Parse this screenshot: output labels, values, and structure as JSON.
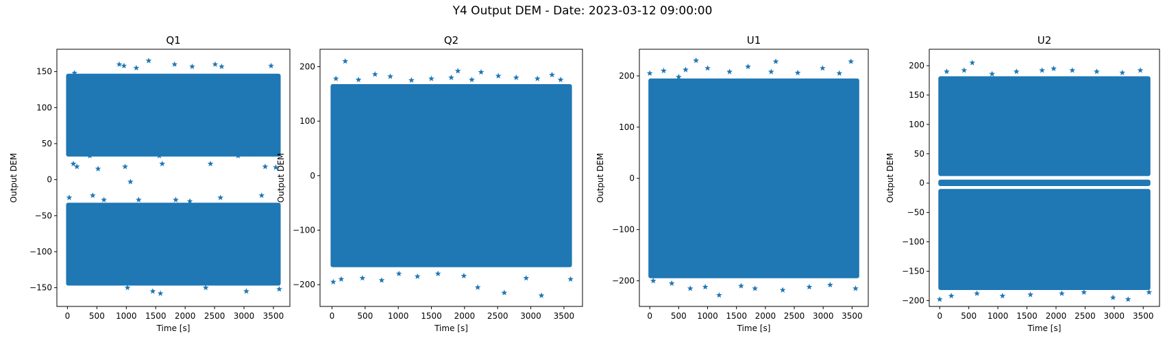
{
  "figure": {
    "title": "Y4 Output DEM - Date: 2023-03-12 09:00:00"
  },
  "colors": {
    "marker": "#1f77b4",
    "axes": "#000000",
    "background": "#ffffff"
  },
  "chart_data": [
    {
      "type": "scatter",
      "marker": "star",
      "title": "Q1",
      "xlabel": "Time [s]",
      "ylabel": "Output DEM",
      "xlim": [
        -180,
        3780
      ],
      "ylim": [
        -176,
        181
      ],
      "xticks": [
        0,
        500,
        1000,
        1500,
        2000,
        2500,
        3000,
        3500
      ],
      "yticks": [
        -150,
        -100,
        -50,
        0,
        50,
        100,
        150
      ],
      "grid": false,
      "x_range": [
        0,
        3600
      ],
      "bands": [
        [
          32,
          147
        ],
        [
          -147,
          -32
        ]
      ],
      "outliers": [
        [
          30,
          -25
        ],
        [
          100,
          22
        ],
        [
          120,
          148
        ],
        [
          160,
          18
        ],
        [
          330,
          35
        ],
        [
          380,
          33
        ],
        [
          430,
          -22
        ],
        [
          520,
          15
        ],
        [
          620,
          -28
        ],
        [
          750,
          36
        ],
        [
          880,
          160
        ],
        [
          960,
          158
        ],
        [
          980,
          18
        ],
        [
          1020,
          -150
        ],
        [
          1070,
          -3
        ],
        [
          1130,
          38
        ],
        [
          1170,
          155
        ],
        [
          1210,
          -28
        ],
        [
          1380,
          165
        ],
        [
          1450,
          -155
        ],
        [
          1560,
          33
        ],
        [
          1580,
          -158
        ],
        [
          1610,
          22
        ],
        [
          1820,
          160
        ],
        [
          1840,
          -28
        ],
        [
          1900,
          38
        ],
        [
          2080,
          -30
        ],
        [
          2120,
          157
        ],
        [
          2350,
          -150
        ],
        [
          2430,
          22
        ],
        [
          2510,
          160
        ],
        [
          2600,
          -25
        ],
        [
          2620,
          157
        ],
        [
          2900,
          33
        ],
        [
          3040,
          -155
        ],
        [
          3160,
          36
        ],
        [
          3300,
          -22
        ],
        [
          3360,
          18
        ],
        [
          3460,
          158
        ],
        [
          3540,
          17
        ],
        [
          3600,
          -152
        ]
      ]
    },
    {
      "type": "scatter",
      "marker": "star",
      "title": "Q2",
      "xlabel": "Time [s]",
      "ylabel": "Output DEM",
      "xlim": [
        -180,
        3780
      ],
      "ylim": [
        -240,
        232
      ],
      "xticks": [
        0,
        500,
        1000,
        1500,
        2000,
        2500,
        3000,
        3500
      ],
      "yticks": [
        -200,
        -100,
        0,
        100,
        200
      ],
      "grid": false,
      "x_range": [
        0,
        3600
      ],
      "bands": [
        [
          -168,
          168
        ]
      ],
      "outliers": [
        [
          20,
          -195
        ],
        [
          60,
          178
        ],
        [
          140,
          -190
        ],
        [
          200,
          210
        ],
        [
          400,
          176
        ],
        [
          460,
          -188
        ],
        [
          650,
          186
        ],
        [
          750,
          -192
        ],
        [
          880,
          182
        ],
        [
          1010,
          -180
        ],
        [
          1200,
          175
        ],
        [
          1290,
          -185
        ],
        [
          1500,
          178
        ],
        [
          1600,
          -180
        ],
        [
          1800,
          180
        ],
        [
          1900,
          192
        ],
        [
          1990,
          -184
        ],
        [
          2110,
          176
        ],
        [
          2200,
          -205
        ],
        [
          2250,
          190
        ],
        [
          2510,
          183
        ],
        [
          2600,
          -215
        ],
        [
          2780,
          180
        ],
        [
          2930,
          -188
        ],
        [
          3100,
          178
        ],
        [
          3160,
          -220
        ],
        [
          3320,
          185
        ],
        [
          3450,
          176
        ],
        [
          3600,
          -190
        ]
      ]
    },
    {
      "type": "scatter",
      "marker": "star",
      "title": "U1",
      "xlabel": "Time [s]",
      "ylabel": "Output DEM",
      "xlim": [
        -180,
        3780
      ],
      "ylim": [
        -250,
        252
      ],
      "xticks": [
        0,
        500,
        1000,
        1500,
        2000,
        2500,
        3000,
        3500
      ],
      "yticks": [
        -200,
        -100,
        0,
        100,
        200
      ],
      "grid": false,
      "x_range": [
        0,
        3600
      ],
      "bands": [
        [
          -195,
          195
        ]
      ],
      "outliers": [
        [
          0,
          205
        ],
        [
          60,
          -200
        ],
        [
          240,
          210
        ],
        [
          380,
          -205
        ],
        [
          500,
          198
        ],
        [
          620,
          212
        ],
        [
          700,
          -215
        ],
        [
          800,
          230
        ],
        [
          960,
          -212
        ],
        [
          1000,
          215
        ],
        [
          1200,
          -228
        ],
        [
          1380,
          208
        ],
        [
          1580,
          -210
        ],
        [
          1700,
          218
        ],
        [
          1820,
          -215
        ],
        [
          2100,
          208
        ],
        [
          2180,
          228
        ],
        [
          2300,
          -218
        ],
        [
          2560,
          206
        ],
        [
          2760,
          -212
        ],
        [
          2990,
          215
        ],
        [
          3120,
          -208
        ],
        [
          3280,
          205
        ],
        [
          3480,
          228
        ],
        [
          3560,
          -215
        ]
      ]
    },
    {
      "type": "scatter",
      "marker": "star",
      "title": "U2",
      "xlabel": "Time [s]",
      "ylabel": "Output DEM",
      "xlim": [
        -180,
        3780
      ],
      "ylim": [
        -210,
        228
      ],
      "xticks": [
        0,
        500,
        1000,
        1500,
        2000,
        2500,
        3000,
        3500
      ],
      "yticks": [
        -200,
        -150,
        -100,
        -50,
        0,
        50,
        100,
        150,
        200
      ],
      "grid": false,
      "x_range": [
        0,
        3600
      ],
      "bands": [
        [
          12,
          182
        ],
        [
          -5,
          6
        ],
        [
          -182,
          -10
        ]
      ],
      "outliers": [
        [
          0,
          -198
        ],
        [
          120,
          190
        ],
        [
          200,
          -192
        ],
        [
          420,
          192
        ],
        [
          560,
          205
        ],
        [
          640,
          -188
        ],
        [
          900,
          186
        ],
        [
          1080,
          -192
        ],
        [
          1320,
          190
        ],
        [
          1560,
          -190
        ],
        [
          1760,
          192
        ],
        [
          1960,
          195
        ],
        [
          2100,
          -188
        ],
        [
          2280,
          192
        ],
        [
          2480,
          -186
        ],
        [
          2700,
          190
        ],
        [
          2980,
          -195
        ],
        [
          3140,
          188
        ],
        [
          3240,
          -198
        ],
        [
          3450,
          192
        ],
        [
          3600,
          -186
        ]
      ]
    }
  ]
}
